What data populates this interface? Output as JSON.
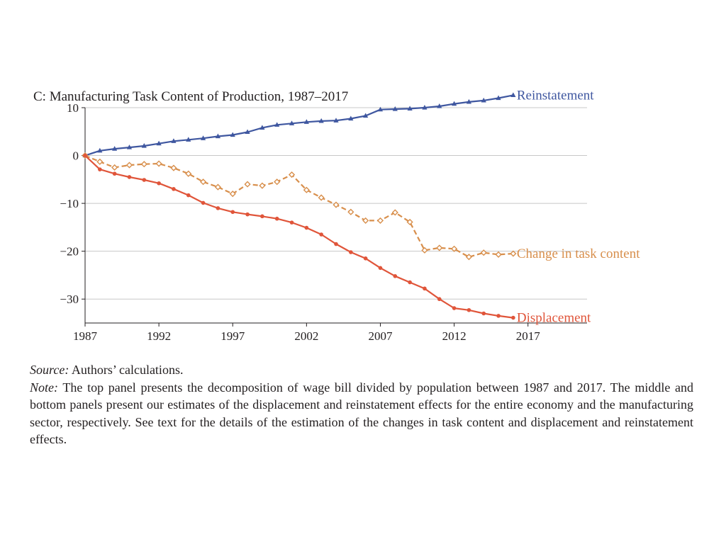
{
  "chart_data": {
    "type": "line",
    "title": "C: Manufacturing Task Content of Production, 1987–2017",
    "xlabel": "",
    "ylabel": "",
    "xlim": [
      1987,
      2021
    ],
    "ylim": [
      -35,
      10
    ],
    "x_ticks": [
      "1987",
      "1992",
      "1997",
      "2002",
      "2007",
      "2012",
      "2017"
    ],
    "y_ticks": [
      "10",
      "0",
      "−10",
      "−20",
      "−30"
    ],
    "grid": true,
    "legend": "direct labels at line ends",
    "x": [
      1987,
      1988,
      1989,
      1990,
      1991,
      1992,
      1993,
      1994,
      1995,
      1996,
      1997,
      1998,
      1999,
      2000,
      2001,
      2002,
      2003,
      2004,
      2005,
      2006,
      2007,
      2008,
      2009,
      2010,
      2011,
      2012,
      2013,
      2014,
      2015,
      2016
    ],
    "series": [
      {
        "name": "Reinstatement",
        "color": "#3f57a0",
        "marker": "triangle",
        "dash": "solid",
        "values": [
          0,
          1.0,
          1.4,
          1.7,
          2.0,
          2.5,
          3.0,
          3.3,
          3.6,
          4.0,
          4.3,
          4.9,
          5.8,
          6.4,
          6.7,
          7.0,
          7.2,
          7.3,
          7.7,
          8.3,
          9.6,
          9.7,
          9.8,
          10.0,
          10.3,
          10.8,
          11.2,
          11.5,
          12.0,
          12.6
        ]
      },
      {
        "name": "Change in task content",
        "color": "#d88f4c",
        "marker": "open-diamond",
        "dash": "dashed",
        "values": [
          0,
          -1.3,
          -2.5,
          -2.0,
          -1.8,
          -1.7,
          -2.6,
          -3.8,
          -5.5,
          -6.6,
          -8.0,
          -6.0,
          -6.3,
          -5.5,
          -4.0,
          -7.2,
          -8.8,
          -10.3,
          -11.8,
          -13.6,
          -13.6,
          -11.9,
          -13.9,
          -19.8,
          -19.3,
          -19.5,
          -21.2,
          -20.3,
          -20.7,
          -20.5
        ]
      },
      {
        "name": "Displacement",
        "color": "#e0553a",
        "marker": "dot",
        "dash": "solid",
        "values": [
          0,
          -2.9,
          -3.8,
          -4.5,
          -5.1,
          -5.8,
          -7.0,
          -8.3,
          -9.9,
          -11.0,
          -11.8,
          -12.3,
          -12.7,
          -13.2,
          -14.0,
          -15.1,
          -16.5,
          -18.5,
          -20.2,
          -21.5,
          -23.5,
          -25.2,
          -26.5,
          -27.8,
          -30.0,
          -31.9,
          -32.3,
          -33.0,
          -33.5,
          -33.9
        ]
      }
    ]
  },
  "caption": {
    "source_label": "Source:",
    "source_text": " Authors’ calculations.",
    "note_label": "Note:",
    "note_text": " The top panel presents the decomposition of wage bill divided by population between 1987 and 2017. The middle and bottom panels present our estimates of the displacement and reinstatement effects for the entire economy and the manufacturing sector, respectively. See text for the details of the estimation of the changes in task content and displacement and reinstatement effects."
  }
}
